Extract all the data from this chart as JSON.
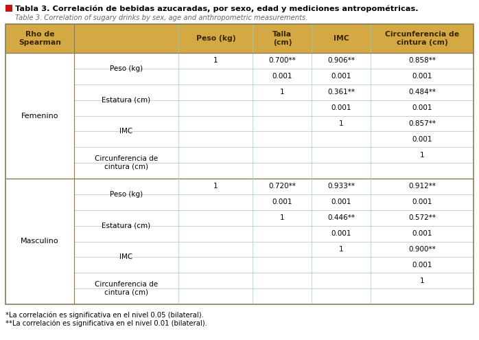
{
  "title_es": "Tabla 3. Correlación de bebidas azucaradas, por sexo, edad y mediciones antropométricas.",
  "title_en": "Table 3. Correlation of sugary drinks by sex, age and anthropometric measurements.",
  "header_bg": "#D4A843",
  "header_text_color": "#3B2500",
  "border_color_outer": "#8B7B55",
  "border_color_inner": "#AACCAA",
  "footnote1": "*La correlación es significativa en el nivel 0.05 (bilateral).",
  "footnote2": "**La correlación es significativa en el nivel 0.01 (bilateral).",
  "col_headers": [
    "Rho de\nSpearman",
    "",
    "Peso (kg)",
    "Talla\n(cm)",
    "IMC",
    "Circunferencia de\ncintura (cm)"
  ],
  "groups": [
    {
      "name": "Femenino",
      "rows": [
        {
          "label": "Peso (kg)",
          "line1": [
            "1",
            "0.700**",
            "0.906**",
            "0.858**"
          ],
          "line2": [
            "",
            "0.001",
            "0.001",
            "0.001"
          ]
        },
        {
          "label": "Estatura (cm)",
          "line1": [
            "",
            "1",
            "0.361**",
            "0.484**"
          ],
          "line2": [
            "",
            "",
            "0.001",
            "0.001"
          ]
        },
        {
          "label": "IMC",
          "line1": [
            "",
            "",
            "1",
            "0.857**"
          ],
          "line2": [
            "",
            "",
            "",
            "0.001"
          ]
        },
        {
          "label": "Circunferencia de\ncintura (cm)",
          "line1": [
            "",
            "",
            "",
            "1"
          ],
          "line2": [
            "",
            "",
            "",
            ""
          ]
        }
      ]
    },
    {
      "name": "Masculino",
      "rows": [
        {
          "label": "Peso (kg)",
          "line1": [
            "1",
            "0.720**",
            "0.933**",
            "0.912**"
          ],
          "line2": [
            "",
            "0.001",
            "0.001",
            "0.001"
          ]
        },
        {
          "label": "Estatura (cm)",
          "line1": [
            "",
            "1",
            "0.446**",
            "0.572**"
          ],
          "line2": [
            "",
            "",
            "0.001",
            "0.001"
          ]
        },
        {
          "label": "IMC",
          "line1": [
            "",
            "",
            "1",
            "0.900**"
          ],
          "line2": [
            "",
            "",
            "",
            "0.001"
          ]
        },
        {
          "label": "Circunferencia de\ncintura (cm)",
          "line1": [
            "",
            "",
            "",
            "1"
          ],
          "line2": [
            "",
            "",
            "",
            ""
          ]
        }
      ]
    }
  ]
}
